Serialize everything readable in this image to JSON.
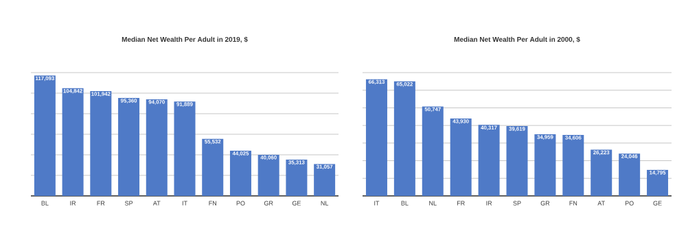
{
  "chart_data": [
    {
      "type": "bar",
      "title": "Median Net Wealth Per Adult in 2019, $",
      "categories": [
        "BL",
        "IR",
        "FR",
        "SP",
        "AT",
        "IT",
        "FN",
        "PO",
        "GR",
        "GE",
        "NL"
      ],
      "values": [
        117093,
        104842,
        101942,
        95360,
        94070,
        91889,
        55532,
        44025,
        40060,
        35313,
        31057
      ],
      "value_labels": [
        "117,093",
        "104,842",
        "101,942",
        "95,360",
        "94,070",
        "91,889",
        "55,532",
        "44,025",
        "40,060",
        "35,313",
        "31,057"
      ],
      "color": "#4f7ac7",
      "ylim": [
        0,
        120000
      ],
      "grid": "y"
    },
    {
      "type": "bar",
      "title": "Median Net Wealth Per Adult in 2000, $",
      "categories": [
        "IT",
        "BL",
        "NL",
        "FR",
        "IR",
        "SP",
        "GR",
        "FN",
        "AT",
        "PO",
        "GE"
      ],
      "values": [
        66313,
        65022,
        50747,
        43930,
        40317,
        39619,
        34959,
        34606,
        26223,
        24046,
        14795
      ],
      "value_labels": [
        "66,313",
        "65,022",
        "50,747",
        "43,930",
        "40,317",
        "39,619",
        "34,959",
        "34,606",
        "26,223",
        "24,046",
        "14,795"
      ],
      "color": "#4f7ac7",
      "ylim": [
        0,
        70000
      ],
      "grid": "y"
    }
  ]
}
